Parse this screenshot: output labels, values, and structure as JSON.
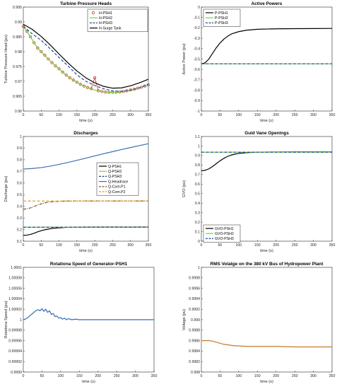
{
  "chart_data": [
    {
      "type": "line",
      "title": "Turbine Pressure Heads",
      "xlabel": "time (s)",
      "ylabel": "Turbine Pressure Head (pu)",
      "xlim": [
        0,
        350
      ],
      "ylim": [
        0.96,
        0.995
      ],
      "xticks": [
        "0",
        "50",
        "100",
        "150",
        "200",
        "250",
        "300",
        "350"
      ],
      "yticks": [
        "0.96",
        "0.965",
        "0.97",
        "0.975",
        "0.98",
        "0.985",
        "0.99",
        "0.995"
      ],
      "legend_position": "top-right",
      "grid": false,
      "series": [
        {
          "name": "H-PSH1",
          "color": "#c0392b",
          "style": "circles",
          "x": [
            0,
            10,
            20,
            30,
            40,
            50,
            60,
            70,
            80,
            90,
            100,
            110,
            120,
            130,
            140,
            150,
            160,
            170,
            180,
            190,
            200,
            210,
            220,
            230,
            240,
            250,
            260,
            270,
            280,
            290,
            300,
            310,
            320,
            330,
            340,
            350
          ],
          "y": [
            0.9885,
            0.9868,
            0.985,
            0.983,
            0.9812,
            0.98,
            0.9788,
            0.9775,
            0.9763,
            0.9752,
            0.9742,
            0.9731,
            0.9721,
            0.9712,
            0.9704,
            0.9697,
            0.969,
            0.9684,
            0.9679,
            0.9675,
            0.9712,
            0.9668,
            0.9666,
            0.9664,
            0.9663,
            0.9663,
            0.9663,
            0.9664,
            0.9666,
            0.9668,
            0.9671,
            0.9673,
            0.9677,
            0.968,
            0.9684,
            0.9688
          ]
        },
        {
          "name": "H-PSH2",
          "color": "#77d132",
          "style": "solid",
          "x": [
            0,
            10,
            20,
            30,
            40,
            50,
            60,
            70,
            80,
            90,
            100,
            110,
            120,
            130,
            140,
            150,
            160,
            170,
            180,
            190,
            200,
            210,
            220,
            230,
            240,
            250,
            260,
            270,
            280,
            290,
            300,
            310,
            320,
            330,
            340,
            350
          ],
          "y": [
            0.9885,
            0.9868,
            0.985,
            0.983,
            0.9812,
            0.98,
            0.9788,
            0.9775,
            0.9763,
            0.9752,
            0.9742,
            0.9731,
            0.9721,
            0.9712,
            0.9704,
            0.9697,
            0.969,
            0.9684,
            0.9679,
            0.9675,
            0.9671,
            0.9668,
            0.9666,
            0.9664,
            0.9663,
            0.9663,
            0.9663,
            0.9664,
            0.9666,
            0.9668,
            0.9671,
            0.9673,
            0.9677,
            0.968,
            0.9684,
            0.9688
          ]
        },
        {
          "name": "H-PSH3",
          "color": "#1f4e9c",
          "style": "dashed",
          "x": [
            0,
            25,
            50,
            75,
            100,
            125,
            150,
            175,
            200,
            225,
            250,
            275,
            300,
            325,
            350
          ],
          "y": [
            0.9885,
            0.986,
            0.9838,
            0.981,
            0.978,
            0.9752,
            0.9722,
            0.97,
            0.9686,
            0.9675,
            0.9668,
            0.9666,
            0.967,
            0.9678,
            0.969
          ]
        },
        {
          "name": "H-Surge Tank",
          "color": "#000000",
          "style": "solid",
          "x": [
            0,
            25,
            50,
            75,
            100,
            125,
            150,
            175,
            200,
            225,
            250,
            275,
            300,
            325,
            350
          ],
          "y": [
            0.9892,
            0.9875,
            0.9851,
            0.9823,
            0.9792,
            0.9762,
            0.9735,
            0.9712,
            0.9695,
            0.9683,
            0.9677,
            0.9678,
            0.9685,
            0.9695,
            0.9707
          ]
        }
      ]
    },
    {
      "type": "line",
      "title": "Active Powers",
      "xlabel": "time (s)",
      "ylabel": "Active Power (pu)",
      "xlim": [
        0,
        350
      ],
      "ylim": [
        -1.1,
        0
      ],
      "xticks": [
        "0",
        "50",
        "100",
        "150",
        "200",
        "250",
        "300",
        "350"
      ],
      "yticks": [
        "-1",
        "-0.9",
        "-0.8",
        "-0.7",
        "-0.6",
        "-0.5",
        "-0.4",
        "-0.3",
        "-0.2",
        "-0.1",
        "0"
      ],
      "legend_position": "top-left",
      "grid": false,
      "series": [
        {
          "name": "P-PSH1",
          "color": "#000000",
          "style": "solid",
          "x": [
            0,
            10,
            20,
            30,
            40,
            50,
            60,
            70,
            80,
            100,
            120,
            150,
            200,
            250,
            300,
            350
          ],
          "y": [
            -0.6,
            -0.59,
            -0.55,
            -0.49,
            -0.43,
            -0.38,
            -0.34,
            -0.31,
            -0.285,
            -0.26,
            -0.245,
            -0.235,
            -0.23,
            -0.228,
            -0.227,
            -0.226
          ]
        },
        {
          "name": "P-PSH2",
          "color": "#77d132",
          "style": "solid",
          "x": [
            0,
            350
          ],
          "y": [
            -0.6,
            -0.6
          ]
        },
        {
          "name": "P-PSH3",
          "color": "#1f4e9c",
          "style": "dashed",
          "x": [
            0,
            350
          ],
          "y": [
            -0.6,
            -0.6
          ]
        }
      ]
    },
    {
      "type": "line",
      "title": "Discharges",
      "xlabel": "time (s)",
      "ylabel": "Discharge (pu)",
      "xlim": [
        0,
        350
      ],
      "ylim": [
        0.1,
        1
      ],
      "xticks": [
        "0",
        "50",
        "100",
        "150",
        "200",
        "250",
        "300",
        "350"
      ],
      "yticks": [
        "0.1",
        "0.2",
        "0.3",
        "0.4",
        "0.5",
        "0.6",
        "0.7",
        "0.8",
        "0.9",
        "1"
      ],
      "legend_position": "right",
      "grid": false,
      "series": [
        {
          "name": "Q-PSH1",
          "color": "#000000",
          "style": "solid",
          "x": [
            0,
            10,
            20,
            30,
            40,
            50,
            60,
            70,
            80,
            100,
            120,
            150,
            200,
            250,
            300,
            350
          ],
          "y": [
            0.15,
            0.152,
            0.158,
            0.168,
            0.18,
            0.19,
            0.198,
            0.204,
            0.209,
            0.215,
            0.219,
            0.221,
            0.222,
            0.222,
            0.222,
            0.222
          ]
        },
        {
          "name": "Q-PSH2",
          "color": "#77d132",
          "style": "solid",
          "x": [
            0,
            350
          ],
          "y": [
            0.22,
            0.22
          ]
        },
        {
          "name": "Q-PSH3",
          "color": "#1f4e9c",
          "style": "dashed",
          "x": [
            0,
            350
          ],
          "y": [
            0.22,
            0.22
          ]
        },
        {
          "name": "Q-Headrace",
          "color": "#3d6db5",
          "style": "solid",
          "x": [
            0,
            25,
            50,
            75,
            100,
            125,
            150,
            175,
            200,
            225,
            250,
            275,
            300,
            325,
            350
          ],
          "y": [
            0.72,
            0.725,
            0.733,
            0.745,
            0.76,
            0.777,
            0.795,
            0.814,
            0.833,
            0.852,
            0.87,
            0.888,
            0.905,
            0.922,
            0.938
          ]
        },
        {
          "name": "Q-Com.P1",
          "color": "#7a4a1e",
          "style": "dashdot",
          "x": [
            0,
            10,
            20,
            30,
            40,
            50,
            60,
            70,
            80,
            100,
            120,
            150,
            200,
            250,
            300,
            350
          ],
          "y": [
            0.375,
            0.378,
            0.386,
            0.398,
            0.411,
            0.421,
            0.429,
            0.435,
            0.439,
            0.443,
            0.445,
            0.446,
            0.446,
            0.446,
            0.446,
            0.446
          ]
        },
        {
          "name": "Q-Com.P2",
          "color": "#e3a21a",
          "style": "dashed",
          "x": [
            0,
            350
          ],
          "y": [
            0.445,
            0.445
          ]
        }
      ]
    },
    {
      "type": "line",
      "title": "Guid Vane Openings",
      "xlabel": "time (s)",
      "ylabel": "GVO (pu)",
      "xlim": [
        0,
        350
      ],
      "ylim": [
        0,
        1.1
      ],
      "xticks": [
        "0",
        "50",
        "100",
        "150",
        "200",
        "250",
        "300",
        "350"
      ],
      "yticks": [
        "0",
        "0.1",
        "0.2",
        "0.3",
        "0.4",
        "0.5",
        "0.6",
        "0.7",
        "0.8",
        "0.9",
        "1",
        "1.1"
      ],
      "legend_position": "bottom-left",
      "grid": false,
      "series": [
        {
          "name": "GVO-PSH1",
          "color": "#000000",
          "style": "solid",
          "x": [
            0,
            10,
            20,
            30,
            40,
            50,
            60,
            70,
            80,
            90,
            100,
            120,
            150,
            200,
            250,
            300,
            350
          ],
          "y": [
            0.74,
            0.745,
            0.76,
            0.785,
            0.815,
            0.845,
            0.87,
            0.89,
            0.905,
            0.915,
            0.922,
            0.93,
            0.935,
            0.937,
            0.938,
            0.938,
            0.938
          ]
        },
        {
          "name": "GVO-PSH2",
          "color": "#77d132",
          "style": "solid",
          "x": [
            0,
            350
          ],
          "y": [
            0.935,
            0.935
          ]
        },
        {
          "name": "GVO-PSH3",
          "color": "#1f4e9c",
          "style": "dashed",
          "x": [
            0,
            350
          ],
          "y": [
            0.935,
            0.935
          ]
        }
      ]
    },
    {
      "type": "line",
      "title": "Rotationa Speed of Generator-PSH1",
      "xlabel": "time (s)",
      "ylabel": "Rotationa Speed (pu)",
      "xlim": [
        0,
        350
      ],
      "ylim": [
        0.9999,
        1.0001
      ],
      "xticks": [
        "0",
        "50",
        "100",
        "150",
        "200",
        "250",
        "300",
        "350"
      ],
      "yticks": [
        "0.9999",
        "0.99992",
        "0.99994",
        "0.99996",
        "0.99998",
        "1",
        "1.00002",
        "1.00004",
        "1.00006",
        "1.00008",
        "1.0001"
      ],
      "grid": false,
      "series": [
        {
          "color": "#2e6cb8",
          "style": "solid",
          "x": [
            0,
            5,
            10,
            15,
            20,
            25,
            30,
            35,
            40,
            45,
            50,
            55,
            60,
            65,
            70,
            75,
            80,
            85,
            90,
            95,
            100,
            105,
            110,
            115,
            120,
            130,
            140,
            150,
            170,
            200,
            250,
            300,
            350
          ],
          "y": [
            1.0,
            1.000001,
            1.000003,
            1.000006,
            1.000009,
            1.000012,
            1.000015,
            1.000018,
            1.000019,
            1.000017,
            1.000021,
            1.000016,
            1.00002,
            1.000014,
            1.000017,
            1.00001,
            1.000012,
            1.000006,
            1.000007,
            1.000003,
            1.000004,
            1.000001,
            1.000003,
            1.0,
            1.000002,
            1.0,
            1.000001,
            1.0,
            1.0,
            1.0,
            1.0,
            1.0,
            1.0
          ]
        }
      ]
    },
    {
      "type": "line",
      "title": "RMS Volatge on the 380 kV Bus of Hydropower Plant",
      "xlabel": "time (s)",
      "ylabel": "Voltage (pu)",
      "xlim": [
        0,
        350
      ],
      "ylim": [
        0.998,
        1
      ],
      "xticks": [
        "0",
        "50",
        "100",
        "150",
        "200",
        "250",
        "300",
        "350"
      ],
      "yticks": [
        "0.998",
        "0.9982",
        "0.9984",
        "0.9986",
        "0.9988",
        "0.999",
        "0.9992",
        "0.9994",
        "0.9996",
        "0.9998",
        "1"
      ],
      "grid": false,
      "series": [
        {
          "color": "#c1792e",
          "style": "solid",
          "x": [
            0,
            10,
            20,
            30,
            40,
            50,
            60,
            70,
            80,
            90,
            100,
            120,
            150,
            200,
            250,
            300,
            350
          ],
          "y": [
            0.9986,
            0.9986,
            0.9986,
            0.99859,
            0.99857,
            0.99855,
            0.99853,
            0.99852,
            0.99851,
            0.9985,
            0.9985,
            0.99849,
            0.99849,
            0.99849,
            0.99848,
            0.99848,
            0.99848
          ]
        }
      ]
    }
  ]
}
